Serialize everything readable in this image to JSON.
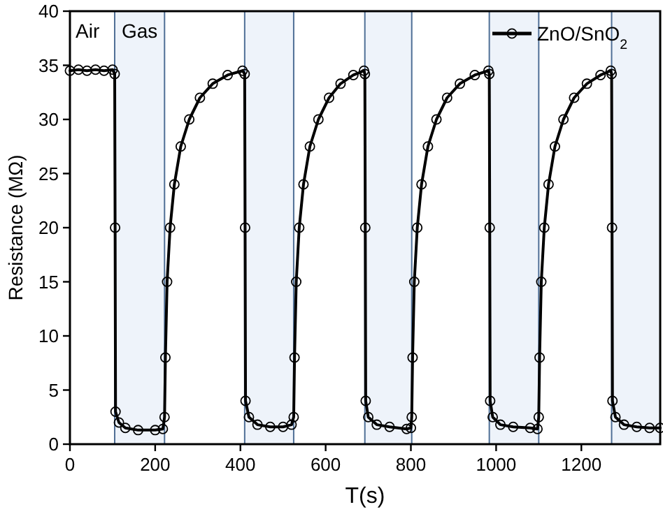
{
  "chart_data": {
    "type": "line",
    "xlabel": "T(s)",
    "ylabel": "Resistance (MΩ)",
    "xlim": [
      0,
      1385
    ],
    "xticks": [
      0,
      200,
      400,
      600,
      800,
      1000,
      1200
    ],
    "ylim": [
      0,
      40
    ],
    "yticks": [
      0,
      5,
      10,
      15,
      20,
      25,
      30,
      35,
      40
    ],
    "grid": false,
    "legend": "top right",
    "marker": "circle",
    "line_style": "solid",
    "bands": [
      {
        "axis": "x",
        "from": 105,
        "to": 222,
        "color": "#eef3fa",
        "label": "Gas"
      },
      {
        "axis": "x",
        "from": 410,
        "to": 525,
        "color": "#eef3fa"
      },
      {
        "axis": "x",
        "from": 692,
        "to": 802,
        "color": "#eef3fa"
      },
      {
        "axis": "x",
        "from": 984,
        "to": 1100,
        "color": "#eef3fa"
      },
      {
        "axis": "x",
        "from": 1271,
        "to": 1385,
        "color": "#eef3fa"
      }
    ],
    "annotations": [
      "Air"
    ],
    "series": [
      {
        "name": "ZnO/SnO$_{2}$",
        "color": "#000000",
        "x": [
          0,
          20,
          40,
          60,
          80,
          100,
          105,
          106,
          107,
          115,
          130,
          160,
          200,
          218,
          222,
          224,
          228,
          235,
          245,
          260,
          280,
          305,
          335,
          370,
          405,
          410,
          411,
          412,
          420,
          440,
          470,
          500,
          520,
          525,
          527,
          531,
          538,
          548,
          563,
          583,
          608,
          635,
          665,
          690,
          692,
          693,
          694,
          700,
          720,
          750,
          790,
          800,
          802,
          804,
          808,
          815,
          825,
          840,
          860,
          885,
          915,
          950,
          982,
          984,
          985,
          986,
          992,
          1010,
          1040,
          1080,
          1097,
          1100,
          1102,
          1106,
          1113,
          1123,
          1138,
          1158,
          1183,
          1213,
          1245,
          1269,
          1271,
          1272,
          1273,
          1280,
          1300,
          1330,
          1360,
          1385
        ],
        "values": [
          34.5,
          34.6,
          34.5,
          34.6,
          34.5,
          34.6,
          34.2,
          20,
          3,
          2,
          1.5,
          1.3,
          1.3,
          1.4,
          2.5,
          8,
          15,
          20,
          24,
          27.5,
          30,
          32,
          33.3,
          34.1,
          34.5,
          34.2,
          20,
          4,
          2.5,
          1.8,
          1.6,
          1.6,
          1.8,
          2.5,
          8,
          15,
          20,
          24,
          27.5,
          30,
          32,
          33.3,
          34.1,
          34.5,
          34.2,
          20,
          4,
          2.5,
          1.8,
          1.6,
          1.4,
          1.5,
          2.5,
          8,
          15,
          20,
          24,
          27.5,
          30,
          32,
          33.3,
          34.1,
          34.5,
          34.2,
          20,
          4,
          2.5,
          1.8,
          1.6,
          1.5,
          1.4,
          2.5,
          8,
          15,
          20,
          24,
          27.5,
          30,
          32,
          33.3,
          34.1,
          34.5,
          34.2,
          20,
          4,
          2.5,
          1.8,
          1.6,
          1.5,
          1.5
        ]
      }
    ]
  }
}
